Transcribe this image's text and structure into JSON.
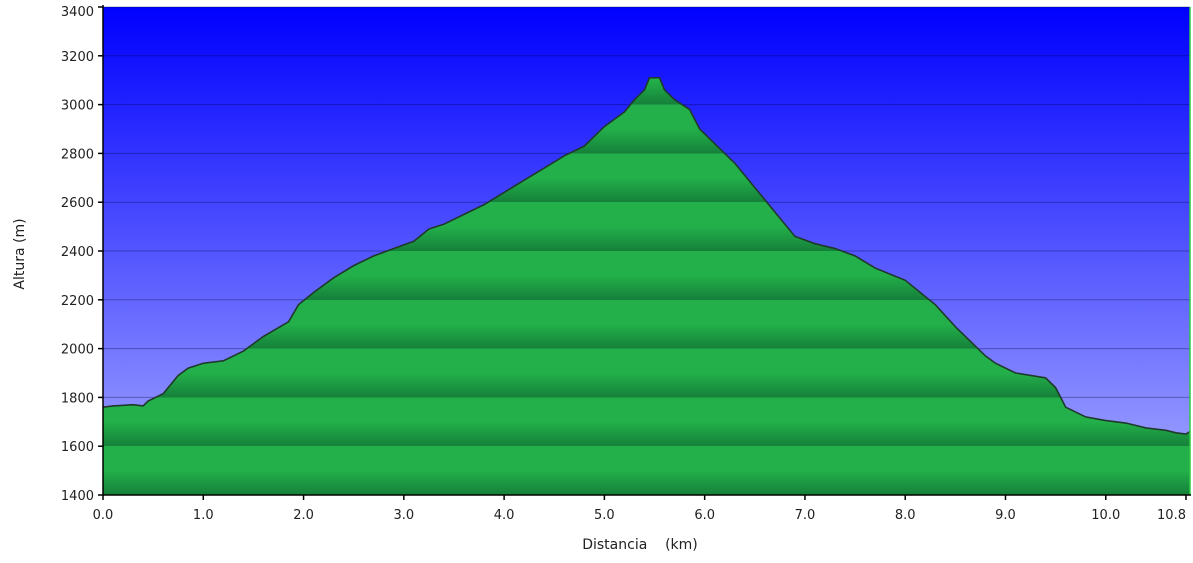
{
  "chart_data": {
    "type": "area",
    "title": "",
    "xlabel": "Distancia    (km)",
    "ylabel": "Altura (m)",
    "xlim": [
      0,
      10.84
    ],
    "ylim": [
      1400,
      3400
    ],
    "grid": true,
    "x_ticks": [
      0,
      1,
      2,
      3,
      4,
      5,
      6,
      7,
      8,
      9,
      10,
      10.8
    ],
    "x_tick_labels": [
      "0.0",
      "1.0",
      "2.0",
      "3.0",
      "4.0",
      "5.0",
      "6.0",
      "7.0",
      "8.0",
      "9.0",
      "10.0",
      "10.8"
    ],
    "y_ticks": [
      1400,
      1600,
      1800,
      2000,
      2200,
      2400,
      2600,
      2800,
      3000,
      3200,
      3400
    ],
    "y_tick_labels": [
      "1400",
      "1600",
      "1800",
      "2000",
      "2200",
      "2400",
      "2600",
      "2800",
      "3000",
      "3200",
      "3400"
    ],
    "colors": {
      "sky_top": "#0000ff",
      "sky_bottom": "#a6aaff",
      "fill_light": "#23b04a",
      "fill_dark": "#15803a",
      "outline": "#1f3a2a"
    },
    "series": [
      {
        "x": [
          0,
          0.1,
          0.3,
          0.4,
          0.45,
          0.6,
          0.65,
          0.75,
          0.85,
          1.0,
          1.2,
          1.4,
          1.6,
          1.85,
          1.95,
          2.1,
          2.3,
          2.5,
          2.7,
          2.9,
          3.1,
          3.25,
          3.4,
          3.6,
          3.8,
          4.0,
          4.2,
          4.4,
          4.6,
          4.8,
          4.9,
          5.0,
          5.1,
          5.2,
          5.3,
          5.4,
          5.45,
          5.55,
          5.6,
          5.7,
          5.85,
          5.95,
          6.1,
          6.3,
          6.5,
          6.7,
          6.9,
          7.1,
          7.3,
          7.5,
          7.7,
          8.0,
          8.3,
          8.5,
          8.8,
          8.9,
          9.1,
          9.4,
          9.5,
          9.6,
          9.8,
          10.0,
          10.2,
          10.4,
          10.6,
          10.7,
          10.8,
          10.84
        ],
        "y": [
          1760,
          1765,
          1770,
          1765,
          1785,
          1815,
          1840,
          1890,
          1920,
          1940,
          1950,
          1990,
          2050,
          2110,
          2180,
          2230,
          2290,
          2340,
          2380,
          2410,
          2440,
          2490,
          2510,
          2550,
          2590,
          2640,
          2690,
          2740,
          2790,
          2830,
          2870,
          2910,
          2940,
          2970,
          3020,
          3060,
          3110,
          3110,
          3060,
          3020,
          2980,
          2900,
          2840,
          2760,
          2660,
          2560,
          2460,
          2430,
          2410,
          2380,
          2330,
          2280,
          2180,
          2090,
          1970,
          1940,
          1900,
          1880,
          1840,
          1760,
          1720,
          1705,
          1695,
          1675,
          1665,
          1655,
          1650,
          1660
        ]
      }
    ]
  }
}
